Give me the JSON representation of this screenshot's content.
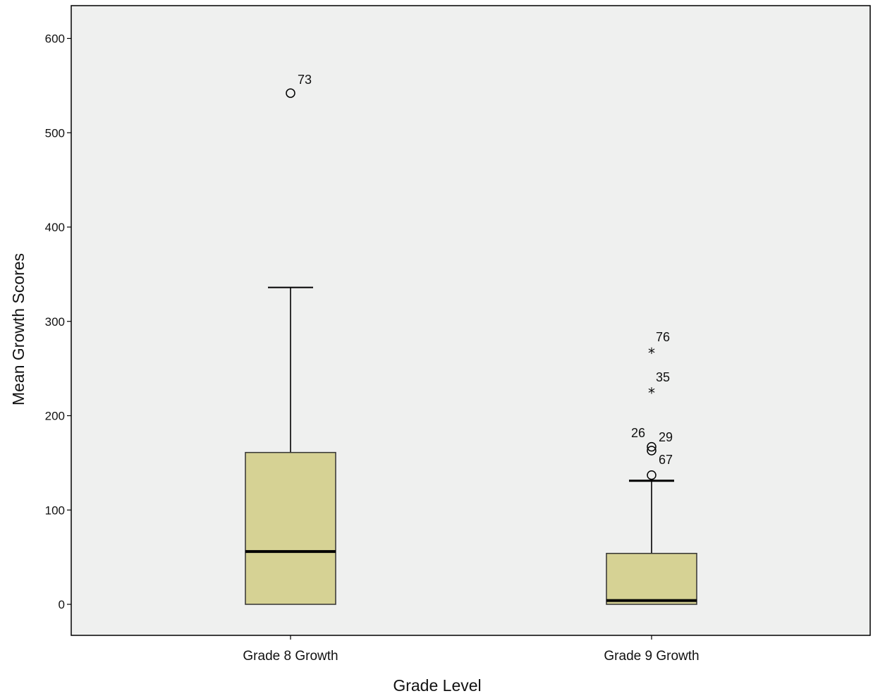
{
  "chart_data": {
    "type": "boxplot",
    "title": "",
    "xlabel": "Grade Level",
    "ylabel": "Mean Growth Scores",
    "ylim": [
      -33,
      635
    ],
    "yticks": [
      0,
      100,
      200,
      300,
      400,
      500,
      600
    ],
    "grid": false,
    "colors": {
      "plot_bg": "#eff0ef",
      "box_fill": "#d6d294",
      "stroke": "#000000"
    },
    "categories": [
      "Grade 8 Growth",
      "Grade 9 Growth"
    ],
    "boxes": [
      {
        "category": "Grade 8 Growth",
        "whisker_low": 0,
        "q1": 0,
        "median": 56,
        "q3": 161,
        "whisker_high": 336,
        "outliers": [
          {
            "value": 542,
            "label": "73",
            "marker": "circle"
          }
        ]
      },
      {
        "category": "Grade 9 Growth",
        "whisker_low": 0,
        "q1": 0,
        "median": 4,
        "q3": 54,
        "whisker_high": 131,
        "outliers": [
          {
            "value": 269,
            "label": "76",
            "marker": "star"
          },
          {
            "value": 227,
            "label": "35",
            "marker": "star"
          },
          {
            "value": 167,
            "label": "29",
            "marker": "circle"
          },
          {
            "value": 163,
            "label": "26",
            "marker": "circle"
          },
          {
            "value": 137,
            "label": "67",
            "marker": "circle"
          }
        ]
      }
    ]
  }
}
